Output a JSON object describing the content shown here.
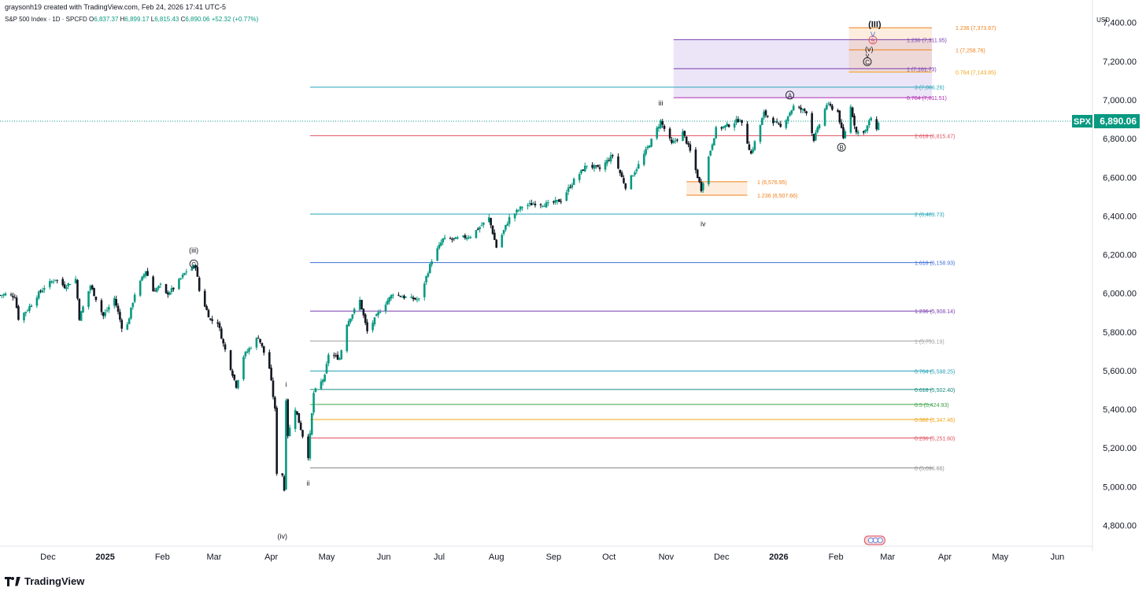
{
  "header": {
    "caption": "graysonh19 created with TradingView.com, Feb 24, 2026 17:41 UTC-5",
    "symbol_line": "S&P 500 Index · 1D · SPCFD",
    "ohlc": [
      {
        "k": "O",
        "v": "6,837.37"
      },
      {
        "k": "H",
        "v": "6,899.17"
      },
      {
        "k": "L",
        "v": "6,815.43"
      },
      {
        "k": "C",
        "v": "6,890.06"
      }
    ],
    "change": "+52.32 (+0.77%)",
    "currency": "USD"
  },
  "price_tag": {
    "symbol": "SPX",
    "value": "6,890.06",
    "price": 6890.06,
    "color": "#089981"
  },
  "colors": {
    "up": "#089981",
    "down": "#131722",
    "grid_text": "#131722"
  },
  "footer": {
    "brand": "TradingView"
  },
  "chart_data": {
    "type": "candlestick",
    "title": "S&P 500 Index · 1D · SPCFD",
    "ylim": [
      4700,
      7460
    ],
    "y_ticks": [
      "4,800.00",
      "5,000.00",
      "5,200.00",
      "5,400.00",
      "5,600.00",
      "5,800.00",
      "6,000.00",
      "6,200.00",
      "6,400.00",
      "6,600.00",
      "6,800.00",
      "7,000.00",
      "7,200.00",
      "7,400.00"
    ],
    "y_tick_values": [
      4800,
      5000,
      5200,
      5400,
      5600,
      5800,
      6000,
      6200,
      6400,
      6600,
      6800,
      7000,
      7200,
      7400
    ],
    "x_ticks": [
      "Dec",
      "2025",
      "Feb",
      "Mar",
      "Apr",
      "May",
      "Jun",
      "Jul",
      "Aug",
      "Sep",
      "Oct",
      "Nov",
      "Dec",
      "2026",
      "Feb",
      "Mar",
      "Apr",
      "May",
      "Jun"
    ],
    "x_tick_dates": [
      "2024-12-01",
      "2025-01-01",
      "2025-02-01",
      "2025-03-01",
      "2025-04-01",
      "2025-05-01",
      "2025-06-01",
      "2025-07-01",
      "2025-08-01",
      "2025-09-01",
      "2025-10-01",
      "2025-11-01",
      "2025-12-01",
      "2026-01-01",
      "2026-02-01",
      "2026-03-01",
      "2026-04-01",
      "2026-05-01",
      "2026-06-01"
    ],
    "x_range": [
      "2024-11-05",
      "2026-06-20"
    ],
    "close_path": [
      [
        "2024-11-05",
        5990
      ],
      [
        "2024-11-08",
        5995
      ],
      [
        "2024-11-13",
        5985
      ],
      [
        "2024-11-15",
        5870
      ],
      [
        "2024-11-20",
        5917
      ],
      [
        "2024-11-25",
        5987
      ],
      [
        "2024-11-29",
        6032
      ],
      [
        "2024-12-05",
        6075
      ],
      [
        "2024-12-10",
        6035
      ],
      [
        "2024-12-16",
        6074
      ],
      [
        "2024-12-18",
        5872
      ],
      [
        "2024-12-24",
        6040
      ],
      [
        "2024-12-31",
        5882
      ],
      [
        "2025-01-06",
        5975
      ],
      [
        "2025-01-10",
        5827
      ],
      [
        "2025-01-13",
        5836
      ],
      [
        "2025-01-17",
        5997
      ],
      [
        "2025-01-23",
        6118
      ],
      [
        "2025-01-27",
        6012
      ],
      [
        "2025-01-31",
        6040
      ],
      [
        "2025-02-03",
        5994
      ],
      [
        "2025-02-07",
        6026
      ],
      [
        "2025-02-14",
        6115
      ],
      [
        "2025-02-19",
        6144
      ],
      [
        "2025-02-21",
        6013
      ],
      [
        "2025-02-27",
        5861
      ],
      [
        "2025-03-03",
        5850
      ],
      [
        "2025-03-06",
        5738
      ],
      [
        "2025-03-10",
        5614
      ],
      [
        "2025-03-13",
        5521
      ],
      [
        "2025-03-17",
        5675
      ],
      [
        "2025-03-25",
        5776
      ],
      [
        "2025-03-31",
        5612
      ],
      [
        "2025-04-03",
        5396
      ],
      [
        "2025-04-04",
        5074
      ],
      [
        "2025-04-07",
        5062
      ],
      [
        "2025-04-08",
        4982
      ],
      [
        "2025-04-09",
        5456
      ],
      [
        "2025-04-10",
        5268
      ],
      [
        "2025-04-14",
        5405
      ],
      [
        "2025-04-21",
        5158
      ],
      [
        "2025-04-24",
        5484
      ],
      [
        "2025-04-30",
        5569
      ],
      [
        "2025-05-02",
        5686
      ],
      [
        "2025-05-08",
        5663
      ],
      [
        "2025-05-12",
        5844
      ],
      [
        "2025-05-19",
        5963
      ],
      [
        "2025-05-23",
        5802
      ],
      [
        "2025-05-30",
        5912
      ],
      [
        "2025-06-06",
        6000
      ],
      [
        "2025-06-13",
        5977
      ],
      [
        "2025-06-20",
        5967
      ],
      [
        "2025-06-27",
        6173
      ],
      [
        "2025-07-03",
        6279
      ],
      [
        "2025-07-10",
        6280
      ],
      [
        "2025-07-18",
        6297
      ],
      [
        "2025-07-28",
        6389
      ],
      [
        "2025-08-01",
        6238
      ],
      [
        "2025-08-08",
        6389
      ],
      [
        "2025-08-15",
        6449
      ],
      [
        "2025-08-22",
        6466
      ],
      [
        "2025-08-29",
        6460
      ],
      [
        "2025-09-05",
        6481
      ],
      [
        "2025-09-12",
        6584
      ],
      [
        "2025-09-19",
        6664
      ],
      [
        "2025-09-26",
        6643
      ],
      [
        "2025-10-03",
        6715
      ],
      [
        "2025-10-10",
        6552
      ],
      [
        "2025-10-17",
        6664
      ],
      [
        "2025-10-24",
        6791
      ],
      [
        "2025-10-29",
        6890
      ],
      [
        "2025-11-04",
        6771
      ],
      [
        "2025-11-10",
        6832
      ],
      [
        "2025-11-14",
        6734
      ],
      [
        "2025-11-20",
        6538
      ],
      [
        "2025-11-24",
        6705
      ],
      [
        "2025-11-28",
        6849
      ],
      [
        "2025-12-05",
        6870
      ],
      [
        "2025-12-11",
        6901
      ],
      [
        "2025-12-17",
        6721
      ],
      [
        "2025-12-24",
        6932
      ],
      [
        "2026-01-02",
        6858
      ],
      [
        "2026-01-09",
        6966
      ],
      [
        "2026-01-16",
        6940
      ],
      [
        "2026-01-20",
        6796
      ],
      [
        "2026-01-27",
        6978
      ],
      [
        "2026-02-02",
        6939
      ],
      [
        "2026-02-05",
        6798
      ],
      [
        "2026-02-09",
        6964
      ],
      [
        "2026-02-12",
        6832
      ],
      [
        "2026-02-17",
        6843
      ],
      [
        "2026-02-20",
        6909
      ],
      [
        "2026-02-23",
        6838
      ],
      [
        "2026-02-24",
        6890
      ]
    ],
    "levels": [
      {
        "label": "3 (7,066.26)",
        "price": 7066.26,
        "color": "#26a6b8",
        "start": "2025-04-22",
        "end": "2026-03-25"
      },
      {
        "label": "2.618 (6,815.47)",
        "price": 6815.47,
        "color": "#e0505e",
        "start": "2025-04-22",
        "end": "2026-03-25"
      },
      {
        "label": "2 (6,409.73)",
        "price": 6409.73,
        "color": "#26a6b8",
        "start": "2025-04-22",
        "end": "2026-03-25"
      },
      {
        "label": "1.618 (6,158.93)",
        "price": 6158.93,
        "color": "#3d6fd6",
        "start": "2025-04-22",
        "end": "2026-03-25"
      },
      {
        "label": "1.236 (5,908.14)",
        "price": 5908.14,
        "color": "#7b3fb0",
        "start": "2025-04-22",
        "end": "2026-03-25"
      },
      {
        "label": "1 (5,753.19)",
        "price": 5753.19,
        "color": "#9e9e9e",
        "start": "2025-04-22",
        "end": "2026-03-25"
      },
      {
        "label": "0.764 (5,598.25)",
        "price": 5598.25,
        "color": "#1f9fb3",
        "start": "2025-04-22",
        "end": "2026-03-25"
      },
      {
        "label": "0.618 (5,502.40)",
        "price": 5502.4,
        "color": "#138a7e",
        "start": "2025-04-22",
        "end": "2026-03-25"
      },
      {
        "label": "0.5 (5,424.93)",
        "price": 5424.93,
        "color": "#3aa043",
        "start": "2025-04-22",
        "end": "2026-03-25"
      },
      {
        "label": "0.382 (5,347.46)",
        "price": 5347.46,
        "color": "#f2a417",
        "start": "2025-04-22",
        "end": "2026-03-25"
      },
      {
        "label": "0.236 (5,251.60)",
        "price": 5251.6,
        "color": "#e0505e",
        "start": "2025-04-22",
        "end": "2026-03-25"
      },
      {
        "label": "0 (5,096.66)",
        "price": 5096.66,
        "color": "#8a8a8a",
        "start": "2025-04-22",
        "end": "2026-03-25"
      },
      {
        "label": "0.764 (7,011.51)",
        "price": 7011.51,
        "color": "#b02ab0",
        "start": "2025-11-05",
        "end": "2026-03-25"
      },
      {
        "label": "1 (7,161.73)",
        "price": 7161.73,
        "color": "#7b3fb0",
        "start": "2025-11-05",
        "end": "2026-03-25"
      },
      {
        "label": "1.236 (7,311.95)",
        "price": 7311.95,
        "color": "#7b3fb0",
        "start": "2025-11-05",
        "end": "2026-03-25"
      },
      {
        "label": "1.236 (7,373.67)",
        "price": 7373.67,
        "color": "#f07f17",
        "start": "2026-02-08",
        "end": "2026-03-25"
      },
      {
        "label": "1 (7,258.76)",
        "price": 7258.76,
        "color": "#f07f17",
        "start": "2026-02-08",
        "end": "2026-03-25"
      },
      {
        "label": "0.764 (7,143.85)",
        "price": 7143.85,
        "color": "#f2a417",
        "start": "2026-02-08",
        "end": "2026-03-25"
      },
      {
        "label": "1 (6,576.95)",
        "price": 6576.95,
        "color": "#f07f17",
        "start": "2025-11-12",
        "end": "2025-12-15"
      },
      {
        "label": "1.236 (6,507.66)",
        "price": 6507.66,
        "color": "#f07f17",
        "start": "2025-11-12",
        "end": "2025-12-15"
      }
    ],
    "zones": [
      {
        "top": 7311.95,
        "bottom": 7011.51,
        "start": "2025-11-05",
        "end": "2026-03-25",
        "color": "#9b7fd9"
      },
      {
        "top": 7373.67,
        "bottom": 7143.85,
        "start": "2026-02-08",
        "end": "2026-03-25",
        "color": "#f7a35c"
      },
      {
        "top": 6576.95,
        "bottom": 6507.66,
        "start": "2025-11-12",
        "end": "2025-12-15",
        "color": "#f7a35c"
      }
    ],
    "wave_labels": [
      {
        "text": "(iii)",
        "date": "2025-02-18",
        "price": 6225,
        "circled": false
      },
      {
        "text": "C",
        "date": "2025-02-18",
        "price": 6152,
        "circled": true
      },
      {
        "text": "i",
        "date": "2025-04-09",
        "price": 5530,
        "circled": false
      },
      {
        "text": "ii",
        "date": "2025-04-21",
        "price": 5020,
        "circled": false
      },
      {
        "text": "(iv)",
        "date": "2025-04-07",
        "price": 4745,
        "circled": false
      },
      {
        "text": "iii",
        "date": "2025-10-29",
        "price": 6985,
        "circled": false
      },
      {
        "text": "iv",
        "date": "2025-11-21",
        "price": 6360,
        "circled": false
      },
      {
        "text": "A",
        "date": "2026-01-07",
        "price": 7025,
        "circled": true
      },
      {
        "text": "B",
        "date": "2026-02-04",
        "price": 6755,
        "circled": true
      },
      {
        "text": "C",
        "date": "2026-02-18",
        "price": 7198,
        "circled": true
      },
      {
        "text": "v",
        "date": "2026-02-18",
        "price": 7232,
        "circled": false
      },
      {
        "text": "(v)",
        "date": "2026-02-19",
        "price": 7264,
        "circled": false
      },
      {
        "text": "5",
        "date": "2026-02-21",
        "price": 7310,
        "circled": true
      },
      {
        "text": "V",
        "date": "2026-02-21",
        "price": 7340,
        "circled": false
      },
      {
        "text": "(III)",
        "date": "2026-02-22",
        "price": 7390,
        "circled": false
      }
    ]
  }
}
